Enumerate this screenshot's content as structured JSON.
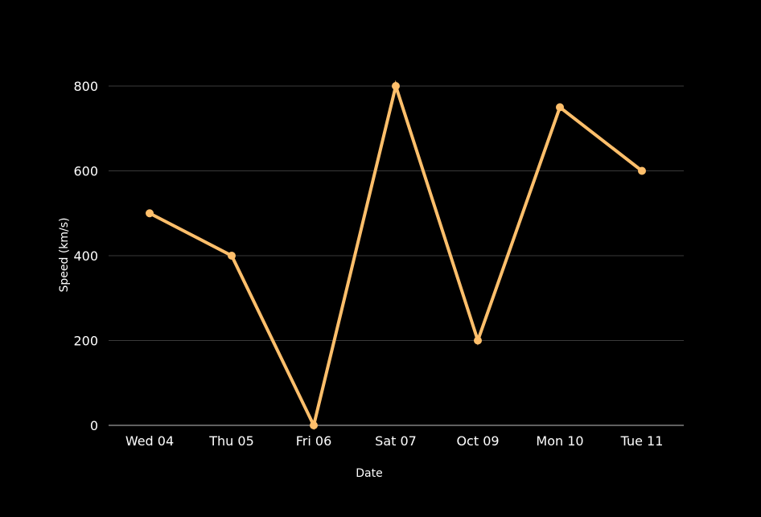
{
  "chart_data": {
    "type": "line",
    "title": "",
    "xlabel": "Date",
    "ylabel": "Speed (km/s)",
    "categories": [
      "Wed 04",
      "Thu 05",
      "Fri 06",
      "Sat 07",
      "Oct 09",
      "Mon 10",
      "Tue 11"
    ],
    "series": [
      {
        "values": [
          500,
          400,
          0,
          800,
          200,
          750,
          600
        ],
        "color": "#FFBF6B"
      }
    ],
    "ylim": [
      0,
      800
    ],
    "yticks": [
      0,
      200,
      400,
      600,
      800
    ],
    "grid": true,
    "background": "#000000",
    "gridColor": "#3a3a3a",
    "textColor": "#ffffff"
  }
}
